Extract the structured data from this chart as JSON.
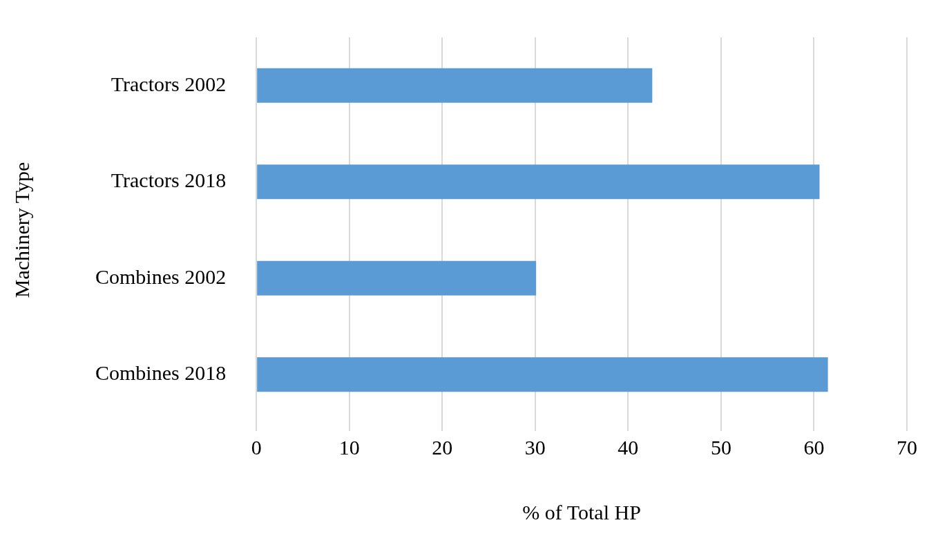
{
  "chart_data": {
    "type": "bar",
    "orientation": "horizontal",
    "categories": [
      "Tractors 2002",
      "Tractors 2018",
      "Combines 2002",
      "Combines 2018"
    ],
    "values": [
      42.6,
      60.6,
      30.1,
      61.5
    ],
    "color": "#5b9bd5",
    "xlim": [
      0,
      70
    ],
    "xticks": [
      0,
      10,
      20,
      30,
      40,
      50,
      60,
      70
    ],
    "xlabel": "% of Total HP",
    "ylabel": "Machinery Type",
    "grid": "x"
  }
}
